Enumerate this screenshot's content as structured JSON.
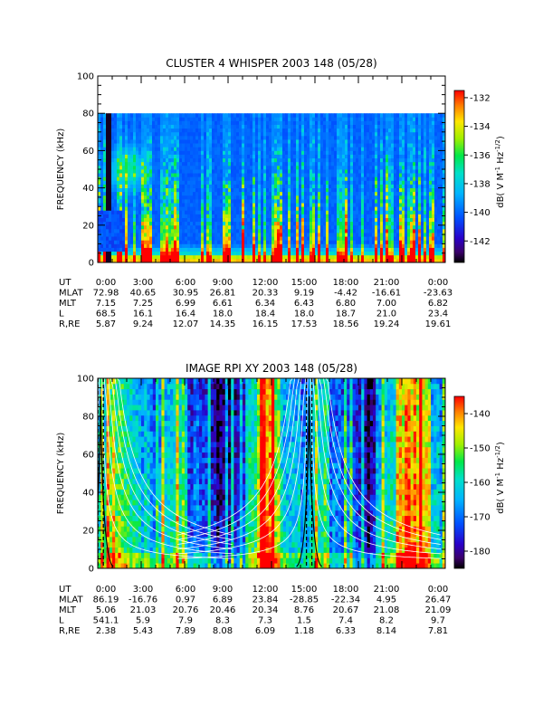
{
  "chart_data": [
    {
      "type": "heatmap",
      "title": "CLUSTER 4 WHISPER 2003 148 (05/28)",
      "ylabel": "FREQUENCY (kHz)",
      "ylim": [
        0,
        100
      ],
      "yticks": [
        "0",
        "20",
        "40",
        "60",
        "80",
        "100"
      ],
      "data_max_khz": 80,
      "colorbar": {
        "label": "dB( V M^-1 Hz^-1/2 )",
        "label_parts": [
          "dB( V M",
          "-1",
          " Hz",
          "-1/2",
          ")"
        ],
        "range": [
          -143.5,
          -131.5
        ],
        "ticks": [
          "-132",
          "-134",
          "-136",
          "-138",
          "-140",
          "-142"
        ]
      },
      "ephemeris": {
        "labels": [
          "UT",
          "MLAT",
          "MLT",
          "L",
          "R,RE"
        ],
        "rows": [
          [
            "0:00",
            "3:00",
            "6:00",
            "9:00",
            "12:00",
            "15:00",
            "18:00",
            "21:00",
            "0:00"
          ],
          [
            "72.98",
            "40.65",
            "30.95",
            "26.81",
            "20.33",
            "9.19",
            "-4.42",
            "-16.61",
            "-23.63"
          ],
          [
            "7.15",
            "7.25",
            "6.99",
            "6.61",
            "6.34",
            "6.43",
            "6.80",
            "7.00",
            "6.82"
          ],
          [
            "68.5",
            "16.1",
            "16.4",
            "18.0",
            "18.4",
            "18.0",
            "18.7",
            "21.0",
            "23.4"
          ],
          [
            "5.87",
            "9.24",
            "12.07",
            "14.35",
            "16.15",
            "17.53",
            "18.56",
            "19.24",
            "19.61"
          ]
        ]
      }
    },
    {
      "type": "heatmap",
      "title": "IMAGE RPI XY 2003 148 (05/28)",
      "ylabel": "FREQUENCY (kHz)",
      "ylim": [
        0,
        100
      ],
      "yticks": [
        "0",
        "20",
        "40",
        "60",
        "80",
        "100"
      ],
      "colorbar": {
        "label": "dB( V M^-1 Hz^-1/2 )",
        "label_parts": [
          "dB( V M",
          "-1",
          " Hz",
          "-1/2",
          ")"
        ],
        "range": [
          -185,
          -135
        ],
        "ticks": [
          "-140",
          "-150",
          "-160",
          "-170",
          "-180"
        ]
      },
      "ephemeris": {
        "labels": [
          "UT",
          "MLAT",
          "MLT",
          "L",
          "R,RE"
        ],
        "rows": [
          [
            "0:00",
            "3:00",
            "6:00",
            "9:00",
            "12:00",
            "15:00",
            "18:00",
            "21:00",
            "0:00"
          ],
          [
            "86.19",
            "-16.76",
            "0.97",
            "6.89",
            "23.84",
            "-28.85",
            "-22.34",
            "4.95",
            "26.47"
          ],
          [
            "5.06",
            "21.03",
            "20.76",
            "20.46",
            "20.34",
            "8.76",
            "20.67",
            "21.08",
            "21.09"
          ],
          [
            "541.1",
            "5.9",
            "7.9",
            "8.3",
            "7.3",
            "1.5",
            "7.4",
            "8.2",
            "9.7"
          ],
          [
            "2.38",
            "5.43",
            "7.89",
            "8.08",
            "6.09",
            "1.18",
            "6.33",
            "8.14",
            "7.81"
          ]
        ]
      }
    }
  ]
}
